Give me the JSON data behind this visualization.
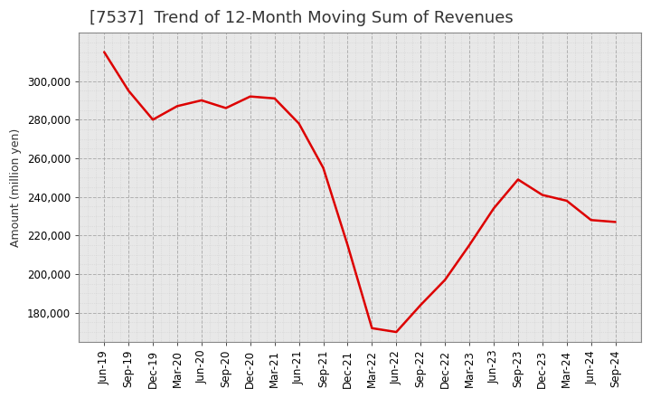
{
  "title": "[7537]  Trend of 12-Month Moving Sum of Revenues",
  "ylabel": "Amount (million yen)",
  "line_color": "#dd0000",
  "background_color": "#ffffff",
  "plot_bg_color": "#e8e8e8",
  "major_grid_color": "#aaaaaa",
  "minor_grid_color": "#cccccc",
  "title_color": "#333333",
  "labels": [
    "Jun-19",
    "Sep-19",
    "Dec-19",
    "Mar-20",
    "Jun-20",
    "Sep-20",
    "Dec-20",
    "Mar-21",
    "Jun-21",
    "Sep-21",
    "Dec-21",
    "Mar-22",
    "Jun-22",
    "Sep-22",
    "Dec-22",
    "Mar-23",
    "Jun-23",
    "Sep-23",
    "Dec-23",
    "Mar-24",
    "Jun-24",
    "Sep-24"
  ],
  "values": [
    315000,
    295000,
    280000,
    287000,
    290000,
    286000,
    292000,
    291000,
    278000,
    255000,
    215000,
    172000,
    170000,
    184000,
    197000,
    215000,
    234000,
    249000,
    241000,
    238000,
    228000,
    227000
  ],
  "ylim": [
    165000,
    325000
  ],
  "yticks": [
    180000,
    200000,
    220000,
    240000,
    260000,
    280000,
    300000
  ],
  "title_fontsize": 13,
  "axis_fontsize": 9,
  "tick_fontsize": 8.5,
  "linewidth": 1.8
}
